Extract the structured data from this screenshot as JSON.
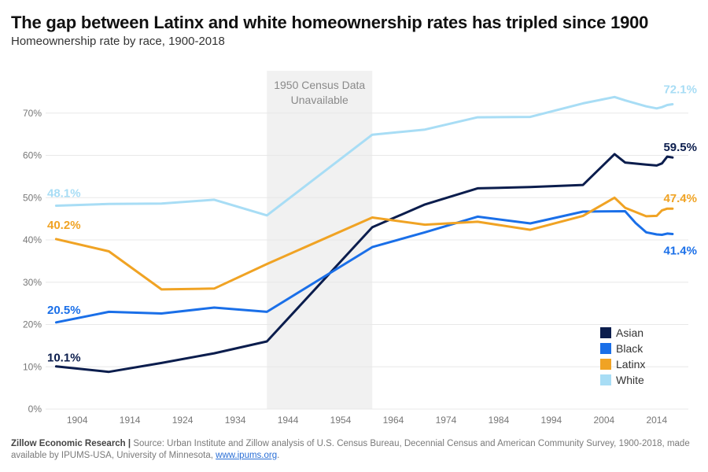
{
  "title": "The gap between Latinx and white homeownership rates has tripled since 1900",
  "subtitle": "Homeownership rate by race, 1900-2018",
  "footer": {
    "brand": "Zillow Economic Research |",
    "text": " Source: Urban Institute and Zillow analysis of U.S. Census Bureau, Decennial Census and American Community Survey, 1900-2018, made available by IPUMS-USA, University of Minnesota, ",
    "link": "www.ipums.org",
    "end": "."
  },
  "chart_data": {
    "type": "line",
    "title": "The gap between Latinx and white homeownership rates has tripled since 1900",
    "subtitle": "Homeownership rate by race, 1900-2018",
    "xlabel": "",
    "ylabel": "",
    "xlim": [
      1898,
      2020
    ],
    "ylim": [
      0,
      80
    ],
    "x_ticks": [
      1904,
      1914,
      1924,
      1934,
      1944,
      1954,
      1964,
      1974,
      1984,
      1994,
      2004,
      2014
    ],
    "y_ticks": [
      {
        "value": 0,
        "label": "0%"
      },
      {
        "value": 10,
        "label": "10%"
      },
      {
        "value": 20,
        "label": "20%"
      },
      {
        "value": 30,
        "label": "30%"
      },
      {
        "value": 40,
        "label": "40%"
      },
      {
        "value": 50,
        "label": "50%"
      },
      {
        "value": 60,
        "label": "60%"
      },
      {
        "value": 70,
        "label": "70%"
      }
    ],
    "grid": "horizontal",
    "legend_position": "bottom-right",
    "shaded_region": {
      "x_start": 1940,
      "x_end": 1960,
      "label_lines": [
        "1950 Census Data",
        "Unavailable"
      ],
      "color": "#f1f1f1"
    },
    "series": [
      {
        "name": "Asian",
        "color": "#0b1d4d",
        "x": [
          1900,
          1910,
          1920,
          1930,
          1940,
          1960,
          1970,
          1980,
          1990,
          2000,
          2006,
          2008,
          2012,
          2014,
          2015,
          2016,
          2017
        ],
        "y": [
          10.1,
          8.8,
          10.9,
          13.2,
          16.0,
          43.0,
          48.4,
          52.2,
          52.5,
          53.0,
          60.3,
          58.3,
          57.8,
          57.6,
          58.1,
          59.7,
          59.5
        ],
        "start_label": "10.1%",
        "end_label": "59.5%"
      },
      {
        "name": "Black",
        "color": "#1a6fe8",
        "x": [
          1900,
          1910,
          1920,
          1930,
          1940,
          1960,
          1970,
          1980,
          1990,
          2000,
          2008,
          2010,
          2012,
          2014,
          2015,
          2016,
          2017
        ],
        "y": [
          20.5,
          23.0,
          22.6,
          24.0,
          23.0,
          38.3,
          41.8,
          45.5,
          43.9,
          46.7,
          46.8,
          44.0,
          41.8,
          41.3,
          41.2,
          41.5,
          41.4
        ],
        "start_label": "20.5%",
        "end_label": "41.4%"
      },
      {
        "name": "Latinx",
        "color": "#f0a324",
        "x": [
          1900,
          1910,
          1920,
          1930,
          1940,
          1960,
          1970,
          1980,
          1990,
          2000,
          2006,
          2008,
          2012,
          2014,
          2015,
          2016,
          2017
        ],
        "y": [
          40.2,
          37.3,
          28.3,
          28.5,
          34.3,
          45.3,
          43.6,
          44.3,
          42.4,
          45.7,
          50.0,
          47.6,
          45.6,
          45.7,
          47.0,
          47.4,
          47.4
        ],
        "start_label": "40.2%",
        "end_label": "47.4%"
      },
      {
        "name": "White",
        "color": "#a8ddf5",
        "x": [
          1900,
          1910,
          1920,
          1930,
          1940,
          1960,
          1970,
          1980,
          1990,
          2000,
          2006,
          2008,
          2012,
          2014,
          2015,
          2016,
          2017
        ],
        "y": [
          48.1,
          48.5,
          48.6,
          49.5,
          45.8,
          64.9,
          66.1,
          69.0,
          69.1,
          72.3,
          73.8,
          73.0,
          71.6,
          71.1,
          71.4,
          71.9,
          72.1
        ],
        "start_label": "48.1%",
        "end_label": "72.1%"
      }
    ]
  }
}
